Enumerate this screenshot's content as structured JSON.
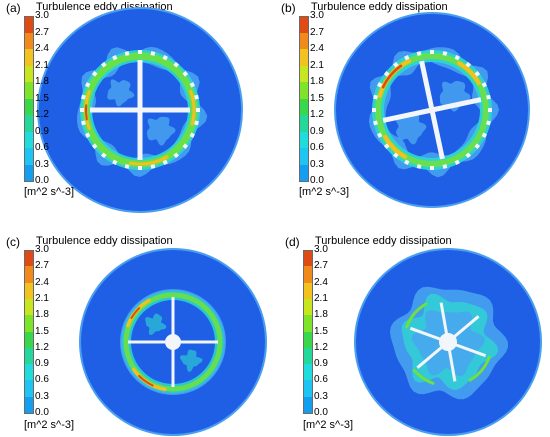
{
  "colorbar": {
    "title": "Turbulence eddy dissipation",
    "unit": "[m^2 s^-3]",
    "ticks": [
      "3.0",
      "2.7",
      "2.4",
      "2.1",
      "1.8",
      "1.5",
      "1.2",
      "0.9",
      "0.6",
      "0.3",
      "0.0"
    ],
    "colors": [
      "#e04a14",
      "#f08a1c",
      "#f2c320",
      "#c8e61e",
      "#7ee42a",
      "#38d84a",
      "#22d89a",
      "#20dcdc",
      "#1ec4f2",
      "#149ef0",
      "#1662e6"
    ]
  },
  "panels": [
    {
      "label": "(a)"
    },
    {
      "label": "(b)"
    },
    {
      "label": "(c)"
    },
    {
      "label": "(d)"
    }
  ],
  "colors": {
    "background": "#1e5fe6",
    "outer_ring": "#4a9ef0",
    "low": "#4aa6f0",
    "mid": "#2ed8d0",
    "high": "#6ee040",
    "peak": "#f2c020",
    "hotspot": "#e04a14",
    "rotor": "#f2f6fa"
  }
}
